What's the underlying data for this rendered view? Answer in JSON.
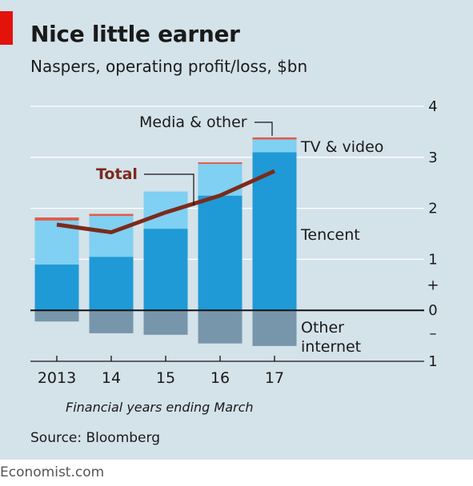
{
  "header": {
    "title": "Nice little earner",
    "subtitle": "Naspers, operating profit/loss, $bn"
  },
  "note": "Financial years ending March",
  "source": "Source: Bloomberg",
  "footer": "Economist.com",
  "colors": {
    "background": "#d4e2ea",
    "tencent": "#1f9ad6",
    "tv_video": "#7fd0f2",
    "media_other": "#e05a48",
    "other_internet": "#7896ab",
    "total": "#7b2a1b",
    "accent": "#e3120b"
  },
  "chart_data": {
    "type": "bar",
    "stacked": true,
    "categories": [
      "2013",
      "14",
      "15",
      "16",
      "17"
    ],
    "series": [
      {
        "name": "Tencent",
        "values": [
          0.9,
          1.05,
          1.6,
          2.25,
          3.1
        ]
      },
      {
        "name": "TV & video",
        "values": [
          0.86,
          0.8,
          0.73,
          0.62,
          0.25
        ]
      },
      {
        "name": "Media & other",
        "values": [
          0.06,
          0.04,
          0.0,
          0.02,
          0.04
        ]
      },
      {
        "name": "Other internet",
        "values": [
          -0.22,
          -0.45,
          -0.48,
          -0.65,
          -0.7
        ]
      }
    ],
    "total": {
      "name": "Total",
      "values": [
        1.68,
        1.53,
        1.92,
        2.25,
        2.73
      ]
    },
    "ylim": [
      -1,
      4
    ],
    "yticks": [
      -1,
      0,
      1,
      2,
      3,
      4
    ],
    "ytick_labels": [
      "1",
      "0",
      "1",
      "2",
      "3",
      "4"
    ],
    "ysign_labels": [
      "+",
      "–"
    ],
    "xlabel": "",
    "ylabel": "",
    "grid": true
  }
}
